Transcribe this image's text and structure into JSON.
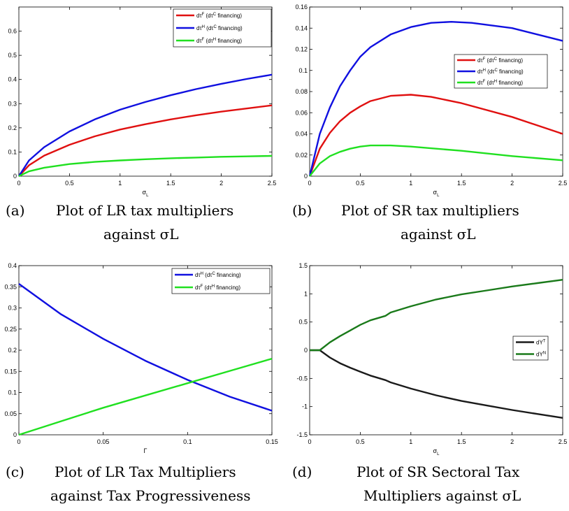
{
  "chart_data": [
    {
      "id": "a",
      "type": "line",
      "xlim": [
        0,
        2.5
      ],
      "ylim": [
        0,
        0.7
      ],
      "xticks": [
        "0",
        "0.5",
        "1",
        "1.5",
        "2",
        "2.5"
      ],
      "yticks": [
        "0",
        "0.1",
        "0.2",
        "0.3",
        "0.4",
        "0.5",
        "0.6"
      ],
      "xlabel": "σL",
      "legend": "top-right",
      "series": [
        {
          "name": "dτF (dτC financing)",
          "color": "#e01010",
          "x": [
            0,
            0.1,
            0.25,
            0.5,
            0.75,
            1,
            1.25,
            1.5,
            1.75,
            2,
            2.25,
            2.5
          ],
          "y": [
            0,
            0.045,
            0.085,
            0.13,
            0.165,
            0.193,
            0.215,
            0.235,
            0.252,
            0.267,
            0.28,
            0.293
          ]
        },
        {
          "name": "dτH (dτC financing)",
          "color": "#1010e0",
          "x": [
            0,
            0.1,
            0.25,
            0.5,
            0.75,
            1,
            1.25,
            1.5,
            1.75,
            2,
            2.25,
            2.5
          ],
          "y": [
            0,
            0.065,
            0.12,
            0.185,
            0.235,
            0.275,
            0.307,
            0.335,
            0.36,
            0.382,
            0.402,
            0.42
          ]
        },
        {
          "name": "dτF (dτH financing)",
          "color": "#20e020",
          "x": [
            0,
            0.1,
            0.25,
            0.5,
            0.75,
            1,
            1.25,
            1.5,
            1.75,
            2,
            2.25,
            2.5
          ],
          "y": [
            0,
            0.02,
            0.035,
            0.05,
            0.059,
            0.065,
            0.07,
            0.074,
            0.077,
            0.08,
            0.082,
            0.084
          ]
        }
      ]
    },
    {
      "id": "b",
      "type": "line",
      "xlim": [
        0,
        2.5
      ],
      "ylim": [
        0,
        0.16
      ],
      "xticks": [
        "0",
        "0.5",
        "1",
        "1.5",
        "2",
        "2.5"
      ],
      "yticks": [
        "0",
        "0.02",
        "0.04",
        "0.06",
        "0.08",
        "0.1",
        "0.12",
        "0.14",
        "0.16"
      ],
      "xlabel": "σL",
      "legend": "middle-right",
      "series": [
        {
          "name": "dτF (dτC financing)",
          "color": "#e01010",
          "x": [
            0,
            0.1,
            0.2,
            0.3,
            0.4,
            0.5,
            0.6,
            0.8,
            1,
            1.2,
            1.5,
            2,
            2.5
          ],
          "y": [
            0,
            0.026,
            0.041,
            0.052,
            0.06,
            0.066,
            0.071,
            0.076,
            0.077,
            0.075,
            0.069,
            0.056,
            0.04
          ]
        },
        {
          "name": "dτH (dτC financing)",
          "color": "#1010e0",
          "x": [
            0,
            0.1,
            0.2,
            0.3,
            0.4,
            0.5,
            0.6,
            0.8,
            1,
            1.2,
            1.4,
            1.6,
            2,
            2.5
          ],
          "y": [
            0,
            0.04,
            0.065,
            0.085,
            0.1,
            0.113,
            0.122,
            0.134,
            0.141,
            0.145,
            0.146,
            0.145,
            0.14,
            0.128
          ]
        },
        {
          "name": "dτF (dτH financing)",
          "color": "#20e020",
          "x": [
            0,
            0.1,
            0.2,
            0.3,
            0.4,
            0.5,
            0.6,
            0.8,
            1,
            1.5,
            2,
            2.5
          ],
          "y": [
            0,
            0.012,
            0.019,
            0.023,
            0.026,
            0.028,
            0.029,
            0.029,
            0.028,
            0.024,
            0.019,
            0.015
          ]
        }
      ]
    },
    {
      "id": "c",
      "type": "line",
      "xlim": [
        0,
        0.15
      ],
      "ylim": [
        0,
        0.4
      ],
      "xticks": [
        "0",
        "0.05",
        "0.1",
        "0.15"
      ],
      "yticks": [
        "0",
        "0.05",
        "0.1",
        "0.15",
        "0.2",
        "0.25",
        "0.3",
        "0.35",
        "0.4"
      ],
      "xlabel": "Γ",
      "legend": "top-right",
      "series": [
        {
          "name": "dτH (dτC financing)",
          "color": "#1010e0",
          "x": [
            0,
            0.025,
            0.05,
            0.075,
            0.1,
            0.125,
            0.15
          ],
          "y": [
            0.357,
            0.285,
            0.227,
            0.175,
            0.13,
            0.09,
            0.057
          ]
        },
        {
          "name": "dτF (dτH financing)",
          "color": "#20e020",
          "x": [
            0,
            0.025,
            0.05,
            0.075,
            0.1,
            0.125,
            0.15
          ],
          "y": [
            0,
            0.032,
            0.064,
            0.093,
            0.122,
            0.151,
            0.18
          ]
        }
      ]
    },
    {
      "id": "d",
      "type": "line",
      "xlim": [
        0,
        2.5
      ],
      "ylim": [
        -1.5,
        1.5
      ],
      "xticks": [
        "0",
        "0.5",
        "1",
        "1.5",
        "2",
        "2.5"
      ],
      "yticks": [
        "-1.5",
        "-1",
        "-0.5",
        "0",
        "0.5",
        "1",
        "1.5"
      ],
      "xlabel": "σL",
      "legend": "middle-right",
      "series": [
        {
          "name": "dYT",
          "color": "#1a1a1a",
          "x": [
            0,
            0.1,
            0.2,
            0.3,
            0.4,
            0.5,
            0.6,
            0.75,
            0.8,
            1,
            1.25,
            1.5,
            1.75,
            2,
            2.25,
            2.5
          ],
          "y": [
            0,
            0,
            -0.13,
            -0.23,
            -0.31,
            -0.38,
            -0.45,
            -0.53,
            -0.57,
            -0.68,
            -0.8,
            -0.9,
            -0.98,
            -1.06,
            -1.13,
            -1.2
          ]
        },
        {
          "name": "dYN",
          "color": "#1a7a1a",
          "x": [
            0,
            0.1,
            0.2,
            0.3,
            0.4,
            0.5,
            0.6,
            0.75,
            0.8,
            1,
            1.25,
            1.5,
            1.75,
            2,
            2.25,
            2.5
          ],
          "y": [
            0,
            0,
            0.14,
            0.25,
            0.35,
            0.45,
            0.53,
            0.61,
            0.67,
            0.78,
            0.9,
            0.99,
            1.06,
            1.13,
            1.19,
            1.25
          ]
        }
      ]
    }
  ],
  "captions": [
    {
      "label": "(a)",
      "line1": "Plot of LR tax multipliers",
      "line2": "against σL"
    },
    {
      "label": "(b)",
      "line1": "Plot of SR tax multipliers",
      "line2": "against σL"
    },
    {
      "label": "(c)",
      "line1": "Plot of LR Tax Multipliers",
      "line2": "against Tax Progressiveness"
    },
    {
      "label": "(d)",
      "line1": "Plot of SR Sectoral Tax",
      "line2": "Multipliers against σL"
    }
  ]
}
